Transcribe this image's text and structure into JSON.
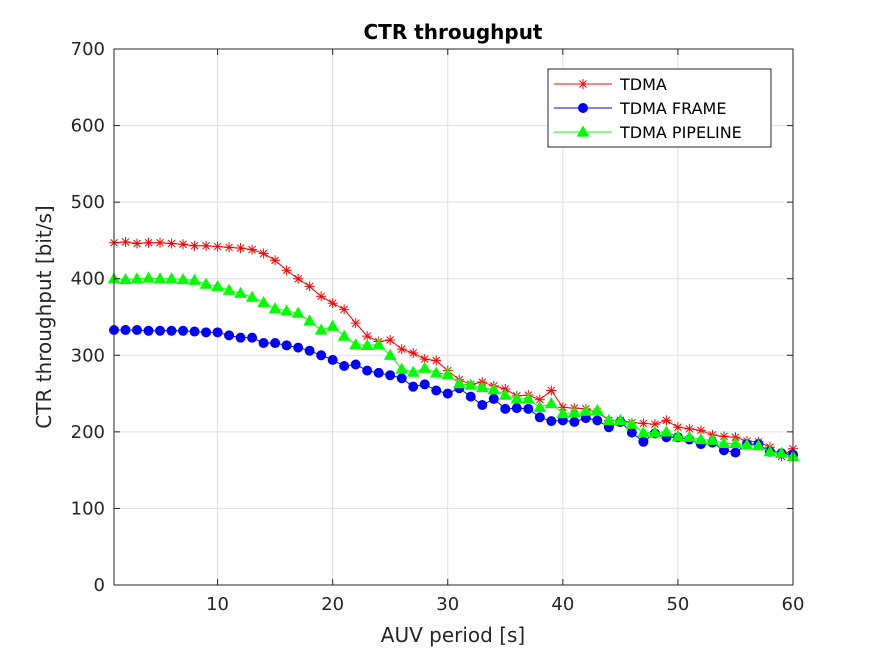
{
  "chart_data": {
    "type": "line",
    "title": "CTR throughput",
    "xlabel": "AUV period [s]",
    "ylabel": "CTR throughput [bit/s]",
    "xlim": [
      1,
      60
    ],
    "ylim": [
      0,
      700
    ],
    "xticks": [
      10,
      20,
      30,
      40,
      50,
      60
    ],
    "yticks": [
      0,
      100,
      200,
      300,
      400,
      500,
      600,
      700
    ],
    "grid": true,
    "legend_position": "top-right",
    "x": [
      1,
      2,
      3,
      4,
      5,
      6,
      7,
      8,
      9,
      10,
      11,
      12,
      13,
      14,
      15,
      16,
      17,
      18,
      19,
      20,
      21,
      22,
      23,
      24,
      25,
      26,
      27,
      28,
      29,
      30,
      31,
      32,
      33,
      34,
      35,
      36,
      37,
      38,
      39,
      40,
      41,
      42,
      43,
      44,
      45,
      46,
      47,
      48,
      49,
      50,
      51,
      52,
      53,
      54,
      55,
      56,
      57,
      58,
      59,
      60
    ],
    "series": [
      {
        "name": "TDMA",
        "color": "#ff0000",
        "marker": "asterisk",
        "values": [
          447,
          448,
          446,
          447,
          447,
          446,
          445,
          443,
          443,
          442,
          441,
          440,
          438,
          433,
          424,
          411,
          400,
          390,
          377,
          368,
          360,
          342,
          325,
          318,
          320,
          308,
          303,
          295,
          293,
          280,
          268,
          262,
          265,
          260,
          256,
          247,
          248,
          242,
          254,
          232,
          231,
          230,
          226,
          215,
          215,
          212,
          211,
          210,
          215,
          206,
          204,
          202,
          196,
          194,
          193,
          188,
          187,
          180,
          168,
          178
        ]
      },
      {
        "name": "TDMA FRAME",
        "color": "#0000ff",
        "marker": "circle",
        "values": [
          333,
          333,
          333,
          332,
          332,
          332,
          332,
          331,
          330,
          330,
          326,
          323,
          323,
          316,
          316,
          313,
          310,
          306,
          300,
          294,
          286,
          288,
          280,
          277,
          274,
          270,
          259,
          262,
          254,
          250,
          257,
          246,
          235,
          243,
          230,
          231,
          230,
          219,
          214,
          215,
          213,
          218,
          215,
          206,
          213,
          199,
          187,
          198,
          193,
          193,
          190,
          184,
          186,
          176,
          173,
          184,
          184,
          174,
          172,
          170
        ]
      },
      {
        "name": "TDMA PIPELINE",
        "color": "#00ff00",
        "marker": "triangle",
        "values": [
          400,
          399,
          400,
          401,
          400,
          400,
          399,
          398,
          393,
          390,
          385,
          381,
          376,
          369,
          361,
          358,
          355,
          345,
          333,
          338,
          325,
          314,
          313,
          314,
          300,
          282,
          278,
          283,
          277,
          275,
          263,
          261,
          258,
          255,
          248,
          243,
          243,
          232,
          237,
          224,
          225,
          227,
          228,
          215,
          215,
          210,
          199,
          199,
          200,
          194,
          193,
          190,
          189,
          185,
          185,
          183,
          182,
          174,
          172,
          168
        ]
      }
    ]
  }
}
